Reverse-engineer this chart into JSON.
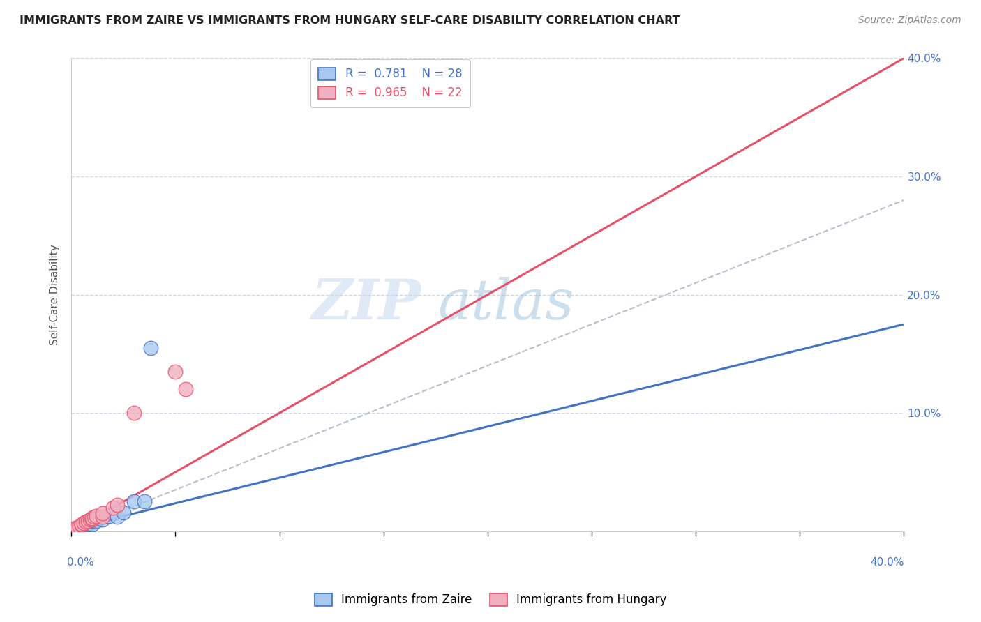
{
  "title": "IMMIGRANTS FROM ZAIRE VS IMMIGRANTS FROM HUNGARY SELF-CARE DISABILITY CORRELATION CHART",
  "source": "Source: ZipAtlas.com",
  "ylabel": "Self-Care Disability",
  "xlim": [
    0.0,
    0.4
  ],
  "ylim": [
    0.0,
    0.4
  ],
  "xtick_values": [
    0.0,
    0.05,
    0.1,
    0.15,
    0.2,
    0.25,
    0.3,
    0.35,
    0.4
  ],
  "ytick_values": [
    0.1,
    0.2,
    0.3,
    0.4
  ],
  "right_ytick_labels": [
    "10.0%",
    "20.0%",
    "30.0%",
    "40.0%"
  ],
  "zaire_color": "#a8c8f0",
  "hungary_color": "#f0b0c0",
  "zaire_line_color": "#4472c4",
  "hungary_line_color": "#e8506a",
  "diagonal_color": "#b0b8c8",
  "R_zaire": 0.781,
  "N_zaire": 28,
  "R_hungary": 0.965,
  "N_hungary": 22,
  "legend_label_zaire": "Immigrants from Zaire",
  "legend_label_hungary": "Immigrants from Hungary",
  "watermark_zip": "ZIP",
  "watermark_atlas": "atlas",
  "background_color": "#ffffff",
  "grid_color": "#d0d8e8",
  "zaire_scatter_x": [
    0.001,
    0.002,
    0.002,
    0.003,
    0.003,
    0.004,
    0.004,
    0.005,
    0.005,
    0.006,
    0.007,
    0.007,
    0.008,
    0.008,
    0.009,
    0.01,
    0.01,
    0.011,
    0.012,
    0.013,
    0.015,
    0.018,
    0.02,
    0.022,
    0.025,
    0.03,
    0.035,
    0.038
  ],
  "zaire_scatter_y": [
    0.001,
    0.001,
    0.002,
    0.002,
    0.003,
    0.002,
    0.004,
    0.003,
    0.005,
    0.004,
    0.006,
    0.005,
    0.006,
    0.007,
    0.007,
    0.006,
    0.009,
    0.01,
    0.009,
    0.011,
    0.01,
    0.013,
    0.015,
    0.012,
    0.016,
    0.025,
    0.025,
    0.155
  ],
  "hungary_scatter_x": [
    0.001,
    0.002,
    0.002,
    0.003,
    0.004,
    0.005,
    0.005,
    0.006,
    0.007,
    0.008,
    0.009,
    0.01,
    0.01,
    0.011,
    0.012,
    0.015,
    0.015,
    0.02,
    0.022,
    0.03,
    0.05,
    0.055
  ],
  "hungary_scatter_y": [
    0.001,
    0.002,
    0.003,
    0.003,
    0.004,
    0.005,
    0.006,
    0.007,
    0.008,
    0.009,
    0.01,
    0.01,
    0.011,
    0.012,
    0.013,
    0.012,
    0.015,
    0.02,
    0.022,
    0.1,
    0.135,
    0.12
  ],
  "zaire_line_x0": 0.0,
  "zaire_line_y0": 0.002,
  "zaire_line_x1": 0.4,
  "zaire_line_y1": 0.175,
  "hungary_line_x0": 0.0,
  "hungary_line_y0": 0.0,
  "hungary_line_x1": 0.4,
  "hungary_line_y1": 0.4,
  "diag_line_x0": 0.0,
  "diag_line_y0": 0.0,
  "diag_line_x1": 0.4,
  "diag_line_y1": 0.28
}
